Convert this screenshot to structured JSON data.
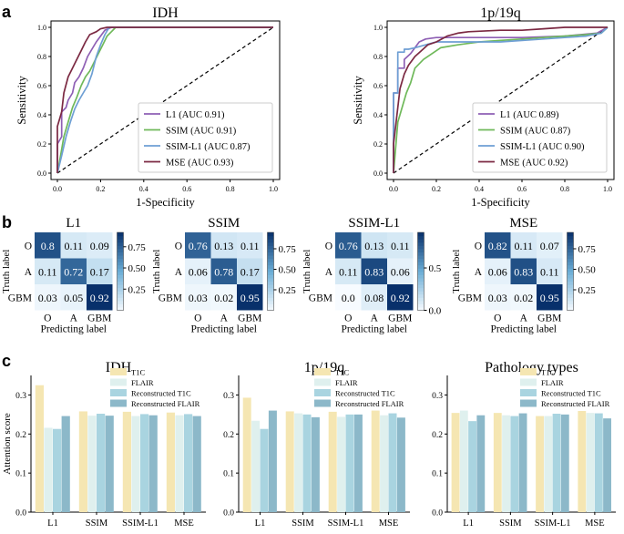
{
  "panel_letters": {
    "a": "a",
    "b": "b",
    "c": "c"
  },
  "colors": {
    "L1": "#8e5fb4",
    "SSIM": "#6fb95a",
    "SSIM-L1": "#6e9fd4",
    "MSE": "#7b2942",
    "diag": "#000000",
    "bar_T1C": "#f5e6b2",
    "bar_FLAIR": "#dff0ee",
    "bar_RecT1C": "#a9d4e0",
    "bar_RecFLAIR": "#8cb8c9",
    "cm_low": "#f7fbff",
    "cm_mid": "#6baed6",
    "cm_high": "#08306b"
  },
  "chart_data": [
    {
      "type": "line",
      "id": "roc-idh",
      "title": "IDH",
      "xlabel": "1-Specificity",
      "ylabel": "Sensitivity",
      "xlim": [
        0,
        1
      ],
      "ylim": [
        0,
        1
      ],
      "xticks": [
        "0.0",
        "0.2",
        "0.4",
        "0.6",
        "0.8",
        "1.0"
      ],
      "yticks": [
        "0.0",
        "0.2",
        "0.4",
        "0.6",
        "0.8",
        "1.0"
      ],
      "legend_position": "bottom-right",
      "series": [
        {
          "name": "L1 (AUC 0.91)",
          "key": "L1",
          "x": [
            0,
            0,
            0.02,
            0.02,
            0.04,
            0.05,
            0.07,
            0.08,
            0.1,
            0.12,
            0.14,
            0.16,
            0.18,
            0.2,
            0.22,
            0.25,
            1
          ],
          "y": [
            0,
            0.2,
            0.25,
            0.42,
            0.45,
            0.5,
            0.55,
            0.62,
            0.66,
            0.72,
            0.8,
            0.85,
            0.9,
            0.94,
            0.98,
            1,
            1
          ]
        },
        {
          "name": "SSIM (AUC 0.91)",
          "key": "SSIM",
          "x": [
            0,
            0.01,
            0.03,
            0.05,
            0.07,
            0.09,
            0.11,
            0.13,
            0.15,
            0.17,
            0.19,
            0.21,
            0.23,
            0.25,
            0.27,
            1
          ],
          "y": [
            0,
            0.08,
            0.25,
            0.35,
            0.45,
            0.52,
            0.6,
            0.66,
            0.7,
            0.76,
            0.82,
            0.88,
            0.94,
            0.97,
            1,
            1
          ]
        },
        {
          "name": "SSIM-L1 (AUC 0.87)",
          "key": "SSIM-L1",
          "x": [
            0,
            0.02,
            0.04,
            0.06,
            0.08,
            0.1,
            0.12,
            0.14,
            0.16,
            0.18,
            0.2,
            0.22,
            0.24,
            1
          ],
          "y": [
            0,
            0.12,
            0.25,
            0.35,
            0.44,
            0.5,
            0.55,
            0.6,
            0.68,
            0.8,
            0.88,
            0.95,
            1,
            1
          ]
        },
        {
          "name": "MSE (AUC 0.93)",
          "key": "MSE",
          "x": [
            0,
            0,
            0.02,
            0.03,
            0.05,
            0.07,
            0.09,
            0.11,
            0.13,
            0.15,
            0.18,
            0.2,
            0.23,
            1
          ],
          "y": [
            0,
            0.32,
            0.42,
            0.55,
            0.66,
            0.72,
            0.78,
            0.84,
            0.9,
            0.95,
            0.97,
            0.99,
            1,
            1
          ]
        }
      ]
    },
    {
      "type": "line",
      "id": "roc-1p19q",
      "title": "1p/19q",
      "xlabel": "1-Specificity",
      "ylabel": "Sensitivity",
      "xlim": [
        0,
        1
      ],
      "ylim": [
        0,
        1
      ],
      "xticks": [
        "0.0",
        "0.2",
        "0.4",
        "0.6",
        "0.8",
        "1.0"
      ],
      "yticks": [
        "0.0",
        "0.2",
        "0.4",
        "0.6",
        "0.8",
        "1.0"
      ],
      "legend_position": "bottom-right",
      "series": [
        {
          "name": "L1 (AUC 0.89)",
          "key": "L1",
          "x": [
            0,
            0,
            0.02,
            0.02,
            0.05,
            0.05,
            0.08,
            0.1,
            0.12,
            0.15,
            0.2,
            0.3,
            0.45,
            0.6,
            0.8,
            0.95,
            1
          ],
          "y": [
            0,
            0.55,
            0.55,
            0.72,
            0.72,
            0.78,
            0.82,
            0.86,
            0.9,
            0.92,
            0.93,
            0.93,
            0.93,
            0.93,
            0.94,
            0.96,
            1
          ]
        },
        {
          "name": "SSIM (AUC 0.87)",
          "key": "SSIM",
          "x": [
            0,
            0.02,
            0.04,
            0.06,
            0.08,
            0.1,
            0.14,
            0.18,
            0.22,
            0.3,
            0.4,
            0.5,
            0.6,
            0.7,
            0.8,
            0.9,
            0.97,
            1
          ],
          "y": [
            0,
            0.35,
            0.45,
            0.55,
            0.62,
            0.72,
            0.78,
            0.82,
            0.86,
            0.88,
            0.9,
            0.91,
            0.92,
            0.93,
            0.94,
            0.95,
            0.96,
            1
          ]
        },
        {
          "name": "SSIM-L1 (AUC 0.90)",
          "key": "SSIM-L1",
          "x": [
            0,
            0,
            0.02,
            0.02,
            0.05,
            0.05,
            0.07,
            0.1,
            0.15,
            0.2,
            0.3,
            0.4,
            0.5,
            0.6,
            0.7,
            0.8,
            0.9,
            0.97,
            1
          ],
          "y": [
            0,
            0.55,
            0.55,
            0.83,
            0.83,
            0.85,
            0.85,
            0.86,
            0.88,
            0.9,
            0.9,
            0.9,
            0.9,
            0.91,
            0.92,
            0.93,
            0.94,
            0.96,
            1
          ]
        },
        {
          "name": "MSE (AUC 0.92)",
          "key": "MSE",
          "x": [
            0,
            0,
            0.02,
            0.03,
            0.05,
            0.07,
            0.1,
            0.13,
            0.16,
            0.2,
            0.25,
            0.3,
            0.35,
            0.5,
            0.6,
            0.7,
            0.8,
            0.9,
            1
          ],
          "y": [
            0,
            0.2,
            0.45,
            0.58,
            0.68,
            0.74,
            0.8,
            0.84,
            0.88,
            0.9,
            0.94,
            0.96,
            0.97,
            0.98,
            0.98,
            0.99,
            1,
            1,
            1
          ]
        }
      ]
    },
    {
      "type": "heatmap",
      "id": "cm-l1",
      "title": "L1",
      "xlabel": "Predicting label",
      "ylabel": "Truth label",
      "labels": [
        "O",
        "A",
        "GBM"
      ],
      "matrix": [
        [
          "0.8",
          "0.11",
          "0.09"
        ],
        [
          "0.11",
          "0.72",
          "0.17"
        ],
        [
          "0.03",
          "0.05",
          "0.92"
        ]
      ],
      "colorbar": {
        "min": 0.0,
        "max": 0.92,
        "ticks": [
          "0.25",
          "0.50",
          "0.75"
        ],
        "tick_values": [
          0.25,
          0.5,
          0.75
        ]
      }
    },
    {
      "type": "heatmap",
      "id": "cm-ssim",
      "title": "SSIM",
      "xlabel": "Predicting label",
      "ylabel": "Truth label",
      "labels": [
        "O",
        "A",
        "GBM"
      ],
      "matrix": [
        [
          "0.76",
          "0.13",
          "0.11"
        ],
        [
          "0.06",
          "0.78",
          "0.17"
        ],
        [
          "0.03",
          "0.02",
          "0.95"
        ]
      ],
      "colorbar": {
        "min": 0.0,
        "max": 0.95,
        "ticks": [
          "0.25",
          "0.50",
          "0.75"
        ],
        "tick_values": [
          0.25,
          0.5,
          0.75
        ]
      }
    },
    {
      "type": "heatmap",
      "id": "cm-ssim-l1",
      "title": "SSIM-L1",
      "xlabel": "Predicting label",
      "ylabel": "Truth label",
      "labels": [
        "O",
        "A",
        "GBM"
      ],
      "matrix": [
        [
          "0.76",
          "0.13",
          "0.11"
        ],
        [
          "0.11",
          "0.83",
          "0.06"
        ],
        [
          "0.0",
          "0.08",
          "0.92"
        ]
      ],
      "colorbar": {
        "min": 0.0,
        "max": 0.92,
        "ticks": [
          "0.0",
          "0.5"
        ],
        "tick_values": [
          0.0,
          0.5
        ]
      }
    },
    {
      "type": "heatmap",
      "id": "cm-mse",
      "title": "MSE",
      "xlabel": "Predicting label",
      "ylabel": "Truth label",
      "labels": [
        "O",
        "A",
        "GBM"
      ],
      "matrix": [
        [
          "0.82",
          "0.11",
          "0.07"
        ],
        [
          "0.06",
          "0.83",
          "0.11"
        ],
        [
          "0.03",
          "0.02",
          "0.95"
        ]
      ],
      "colorbar": {
        "min": 0.0,
        "max": 0.95,
        "ticks": [
          "0.25",
          "0.50",
          "0.75"
        ],
        "tick_values": [
          0.25,
          0.5,
          0.75
        ]
      }
    },
    {
      "type": "bar",
      "id": "bar-idh",
      "title": "IDH",
      "ylabel": "Attention score",
      "categories": [
        "L1",
        "SSIM",
        "SSIM-L1",
        "MSE"
      ],
      "ylim": [
        0,
        0.35
      ],
      "yticks": [
        {
          "label": "0.0",
          "value": 0
        },
        {
          "label": "0.1",
          "value": 0.1
        },
        {
          "label": "0.2",
          "value": 0.2
        },
        {
          "label": "0.3",
          "value": 0.3
        }
      ],
      "legend_position": "top-right",
      "series": [
        {
          "name": "T1C",
          "key": "bar_T1C",
          "values": [
            0.325,
            0.258,
            0.257,
            0.255
          ]
        },
        {
          "name": "FLAIR",
          "key": "bar_FLAIR",
          "values": [
            0.216,
            0.247,
            0.246,
            0.248
          ]
        },
        {
          "name": "Reconstructed T1C",
          "key": "bar_RecT1C",
          "values": [
            0.213,
            0.252,
            0.251,
            0.251
          ]
        },
        {
          "name": "Reconstructed FLAIR",
          "key": "bar_RecFLAIR",
          "values": [
            0.246,
            0.247,
            0.248,
            0.246
          ]
        }
      ]
    },
    {
      "type": "bar",
      "id": "bar-1p19q",
      "title": "1p/19q",
      "ylabel": "",
      "categories": [
        "L1",
        "SSIM",
        "SSIM-L1",
        "MSE"
      ],
      "ylim": [
        0,
        0.35
      ],
      "yticks": [
        {
          "label": "0.0",
          "value": 0
        },
        {
          "label": "0.1",
          "value": 0.1
        },
        {
          "label": "0.2",
          "value": 0.2
        },
        {
          "label": "0.3",
          "value": 0.3
        }
      ],
      "legend_position": "top-right",
      "series": [
        {
          "name": "T1C",
          "key": "bar_T1C",
          "values": [
            0.293,
            0.258,
            0.257,
            0.26
          ]
        },
        {
          "name": "FLAIR",
          "key": "bar_FLAIR",
          "values": [
            0.234,
            0.253,
            0.244,
            0.248
          ]
        },
        {
          "name": "Reconstructed T1C",
          "key": "bar_RecT1C",
          "values": [
            0.213,
            0.25,
            0.25,
            0.253
          ]
        },
        {
          "name": "Reconstructed FLAIR",
          "key": "bar_RecFLAIR",
          "values": [
            0.26,
            0.243,
            0.25,
            0.242
          ]
        }
      ]
    },
    {
      "type": "bar",
      "id": "bar-path",
      "title": "Pathology types",
      "ylabel": "",
      "categories": [
        "L1",
        "SSIM",
        "SSIM-L1",
        "MSE"
      ],
      "ylim": [
        0,
        0.35
      ],
      "yticks": [
        {
          "label": "0.0",
          "value": 0
        },
        {
          "label": "0.1",
          "value": 0.1
        },
        {
          "label": "0.2",
          "value": 0.2
        },
        {
          "label": "0.3",
          "value": 0.3
        }
      ],
      "legend_position": "top-right",
      "series": [
        {
          "name": "T1C",
          "key": "bar_T1C",
          "values": [
            0.254,
            0.254,
            0.246,
            0.259
          ]
        },
        {
          "name": "FLAIR",
          "key": "bar_FLAIR",
          "values": [
            0.26,
            0.248,
            0.246,
            0.254
          ]
        },
        {
          "name": "Reconstructed T1C",
          "key": "bar_RecT1C",
          "values": [
            0.233,
            0.246,
            0.252,
            0.253
          ]
        },
        {
          "name": "Reconstructed FLAIR",
          "key": "bar_RecFLAIR",
          "values": [
            0.248,
            0.253,
            0.25,
            0.24
          ]
        }
      ]
    }
  ]
}
